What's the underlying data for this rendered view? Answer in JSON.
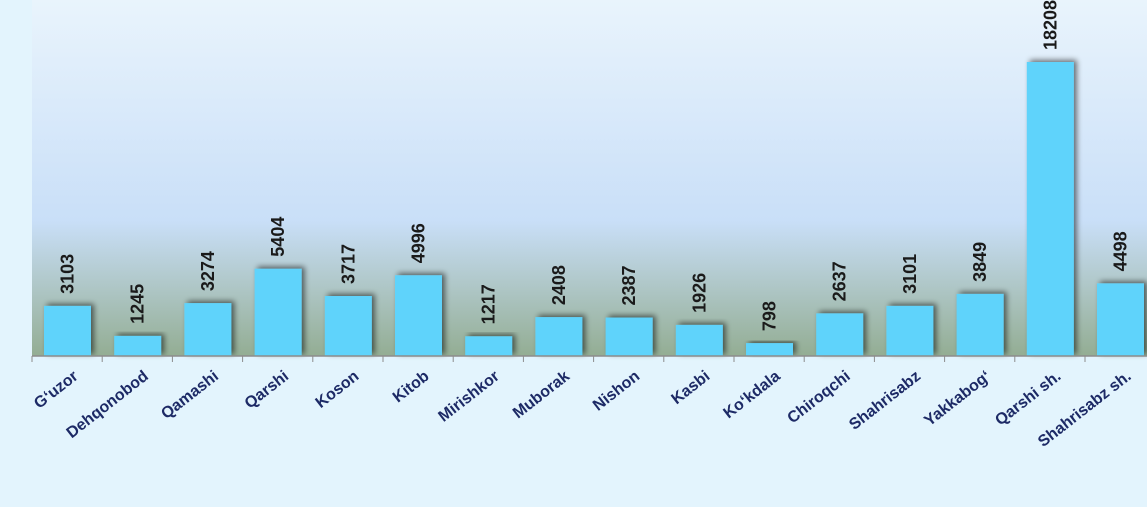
{
  "chart_data": {
    "type": "bar",
    "title": "",
    "xlabel": "",
    "ylabel": "",
    "ylim": [
      0,
      20000
    ],
    "grid": false,
    "legend": "none",
    "categories": [
      "G‘uzor",
      "Dehqonobod",
      "Qamashi",
      "Qarshi",
      "Koson",
      "Kitob",
      "Mirishkor",
      "Muborak",
      "Nishon",
      "Kasbi",
      "Ko‘kdala",
      "Chiroqchi",
      "Shahrisabz",
      "Yakkabog‘",
      "Qarshi sh.",
      "Shahrisabz sh."
    ],
    "values": [
      3103,
      1245,
      3274,
      5404,
      3717,
      4996,
      1217,
      2408,
      2387,
      1926,
      798,
      2637,
      3101,
      3849,
      18208,
      4498
    ],
    "data_labels": [
      "3103",
      "1245",
      "3274",
      "5404",
      "3717",
      "4996",
      "1217",
      "2408",
      "2387",
      "1926",
      "798",
      "2637",
      "3101",
      "3849",
      "18208",
      "4498"
    ]
  },
  "colors": {
    "bar": "#5fd3fb",
    "bar_shadow": "#8a9090",
    "axis": "#8c8c8c",
    "value_text": "#1a1a1a",
    "category_text": "#1d2a66",
    "plot_top": "#e9f4fc",
    "plot_mid": "#c9dff8",
    "plot_bottom": "#93ad93",
    "page_background": "#e3f4fd"
  }
}
